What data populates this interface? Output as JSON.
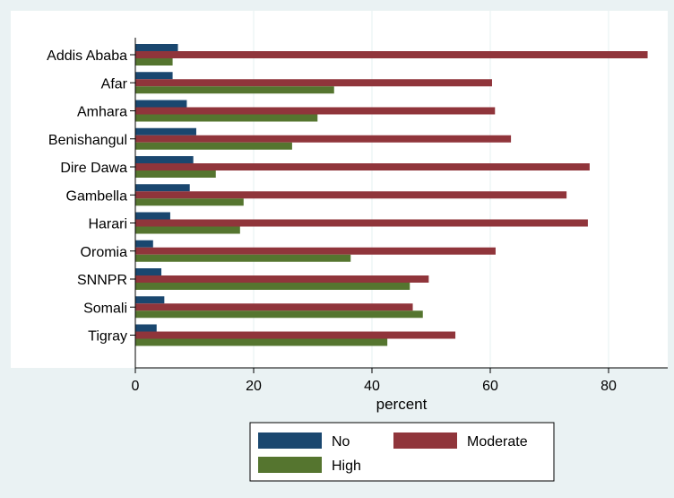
{
  "chart_data": {
    "type": "bar",
    "orientation": "horizontal",
    "title": "",
    "xlabel": "percent",
    "ylabel": "",
    "xlim": [
      0,
      90
    ],
    "xticks": [
      0,
      20,
      40,
      60,
      80
    ],
    "grid": true,
    "legend_position": "bottom",
    "categories": [
      "Addis Ababa",
      "Afar",
      "Amhara",
      "Benishangul",
      "Dire Dawa",
      "Gambella",
      "Harari",
      "Oromia",
      "SNNPR",
      "Somali",
      "Tigray"
    ],
    "series": [
      {
        "name": "No",
        "color": "#1a476f",
        "values": [
          7.2,
          6.3,
          8.7,
          10.3,
          9.8,
          9.2,
          5.9,
          3.0,
          4.4,
          4.9,
          3.6
        ]
      },
      {
        "name": "Moderate",
        "color": "#90353b",
        "values": [
          86.6,
          60.3,
          60.8,
          63.5,
          76.8,
          72.9,
          76.5,
          60.9,
          49.6,
          46.9,
          54.1
        ]
      },
      {
        "name": "High",
        "color": "#55752f",
        "values": [
          6.3,
          33.6,
          30.8,
          26.5,
          13.6,
          18.3,
          17.7,
          36.4,
          46.4,
          48.6,
          42.6
        ]
      }
    ]
  }
}
